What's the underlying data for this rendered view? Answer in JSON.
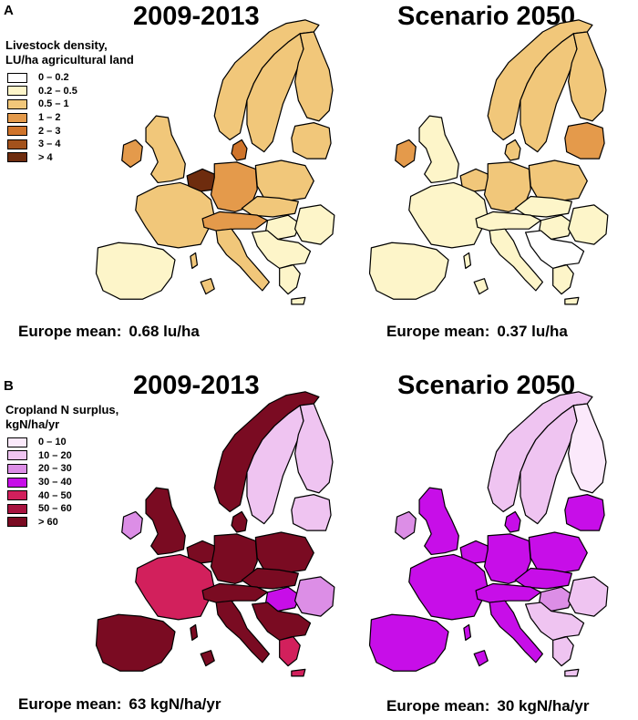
{
  "panels": [
    {
      "letter": "A",
      "left_title": "2009-2013",
      "right_title": "Scenario 2050",
      "legend_title_1": "Livestock density,",
      "legend_title_2": "LU/ha agricultural land",
      "legend": [
        {
          "label": "0 – 0.2",
          "color": "#ffffff"
        },
        {
          "label": "0.2 – 0.5",
          "color": "#fdf5c9"
        },
        {
          "label": "0.5 – 1",
          "color": "#f1c77a"
        },
        {
          "label": "1 – 2",
          "color": "#e49a4b"
        },
        {
          "label": "2 – 3",
          "color": "#cf742b"
        },
        {
          "label": "3 – 4",
          "color": "#a3521c"
        },
        {
          "label": "> 4",
          "color": "#6e2c0e"
        }
      ],
      "left_mean_label": "Europe mean:",
      "left_mean_value": "0.68 lu/ha",
      "right_mean_label": "Europe mean:",
      "right_mean_value": "0.37 lu/ha"
    },
    {
      "letter": "B",
      "left_title": "2009-2013",
      "right_title": "Scenario 2050",
      "legend_title_1": "Cropland N surplus,",
      "legend_title_2": "kgN/ha/yr",
      "legend": [
        {
          "label": "0 – 10",
          "color": "#fbe9fb"
        },
        {
          "label": "10 – 20",
          "color": "#efc4f1"
        },
        {
          "label": "20 – 30",
          "color": "#dc8ee6"
        },
        {
          "label": "30 – 40",
          "color": "#c70ee8"
        },
        {
          "label": "40 – 50",
          "color": "#d2205c"
        },
        {
          "label": "50 – 60",
          "color": "#a8133f"
        },
        {
          "label": "> 60",
          "color": "#7a0b22"
        }
      ],
      "left_mean_label": "Europe mean:",
      "left_mean_value": "63 kgN/ha/yr",
      "right_mean_label": "Europe mean:",
      "right_mean_value": "30 kgN/ha/yr"
    }
  ],
  "maps": {
    "A_left": {
      "iberia": 1,
      "france": 2,
      "uk": 2,
      "ireland": 3,
      "benelux": 6,
      "germany": 3,
      "denmark": 4,
      "norway": 2,
      "sweden": 2,
      "finland": 2,
      "baltics": 2,
      "poland": 2,
      "alps": 3,
      "czech": 2,
      "italy": 2,
      "balkans": 1,
      "hungary": 1,
      "romania": 1,
      "greece": 1
    },
    "A_right": {
      "iberia": 1,
      "france": 1,
      "uk": 1,
      "ireland": 3,
      "benelux": 2,
      "germany": 2,
      "denmark": 2,
      "norway": 2,
      "sweden": 2,
      "finland": 2,
      "baltics": 3,
      "poland": 2,
      "alps": 1,
      "czech": 1,
      "italy": 1,
      "balkans": 0,
      "hungary": 1,
      "romania": 1,
      "greece": 1
    },
    "B_left": {
      "iberia": 6,
      "france": 4,
      "uk": 6,
      "ireland": 2,
      "benelux": 6,
      "germany": 6,
      "denmark": 6,
      "norway": 6,
      "sweden": 1,
      "finland": 1,
      "baltics": 1,
      "poland": 6,
      "alps": 6,
      "czech": 6,
      "italy": 6,
      "balkans": 6,
      "hungary": 3,
      "romania": 2,
      "greece": 4
    },
    "B_right": {
      "iberia": 3,
      "france": 3,
      "uk": 3,
      "ireland": 2,
      "benelux": 3,
      "germany": 3,
      "denmark": 3,
      "norway": 1,
      "sweden": 1,
      "finland": 0,
      "baltics": 3,
      "poland": 3,
      "alps": 3,
      "czech": 3,
      "italy": 3,
      "balkans": 1,
      "hungary": 2,
      "romania": 1,
      "greece": 1
    }
  }
}
